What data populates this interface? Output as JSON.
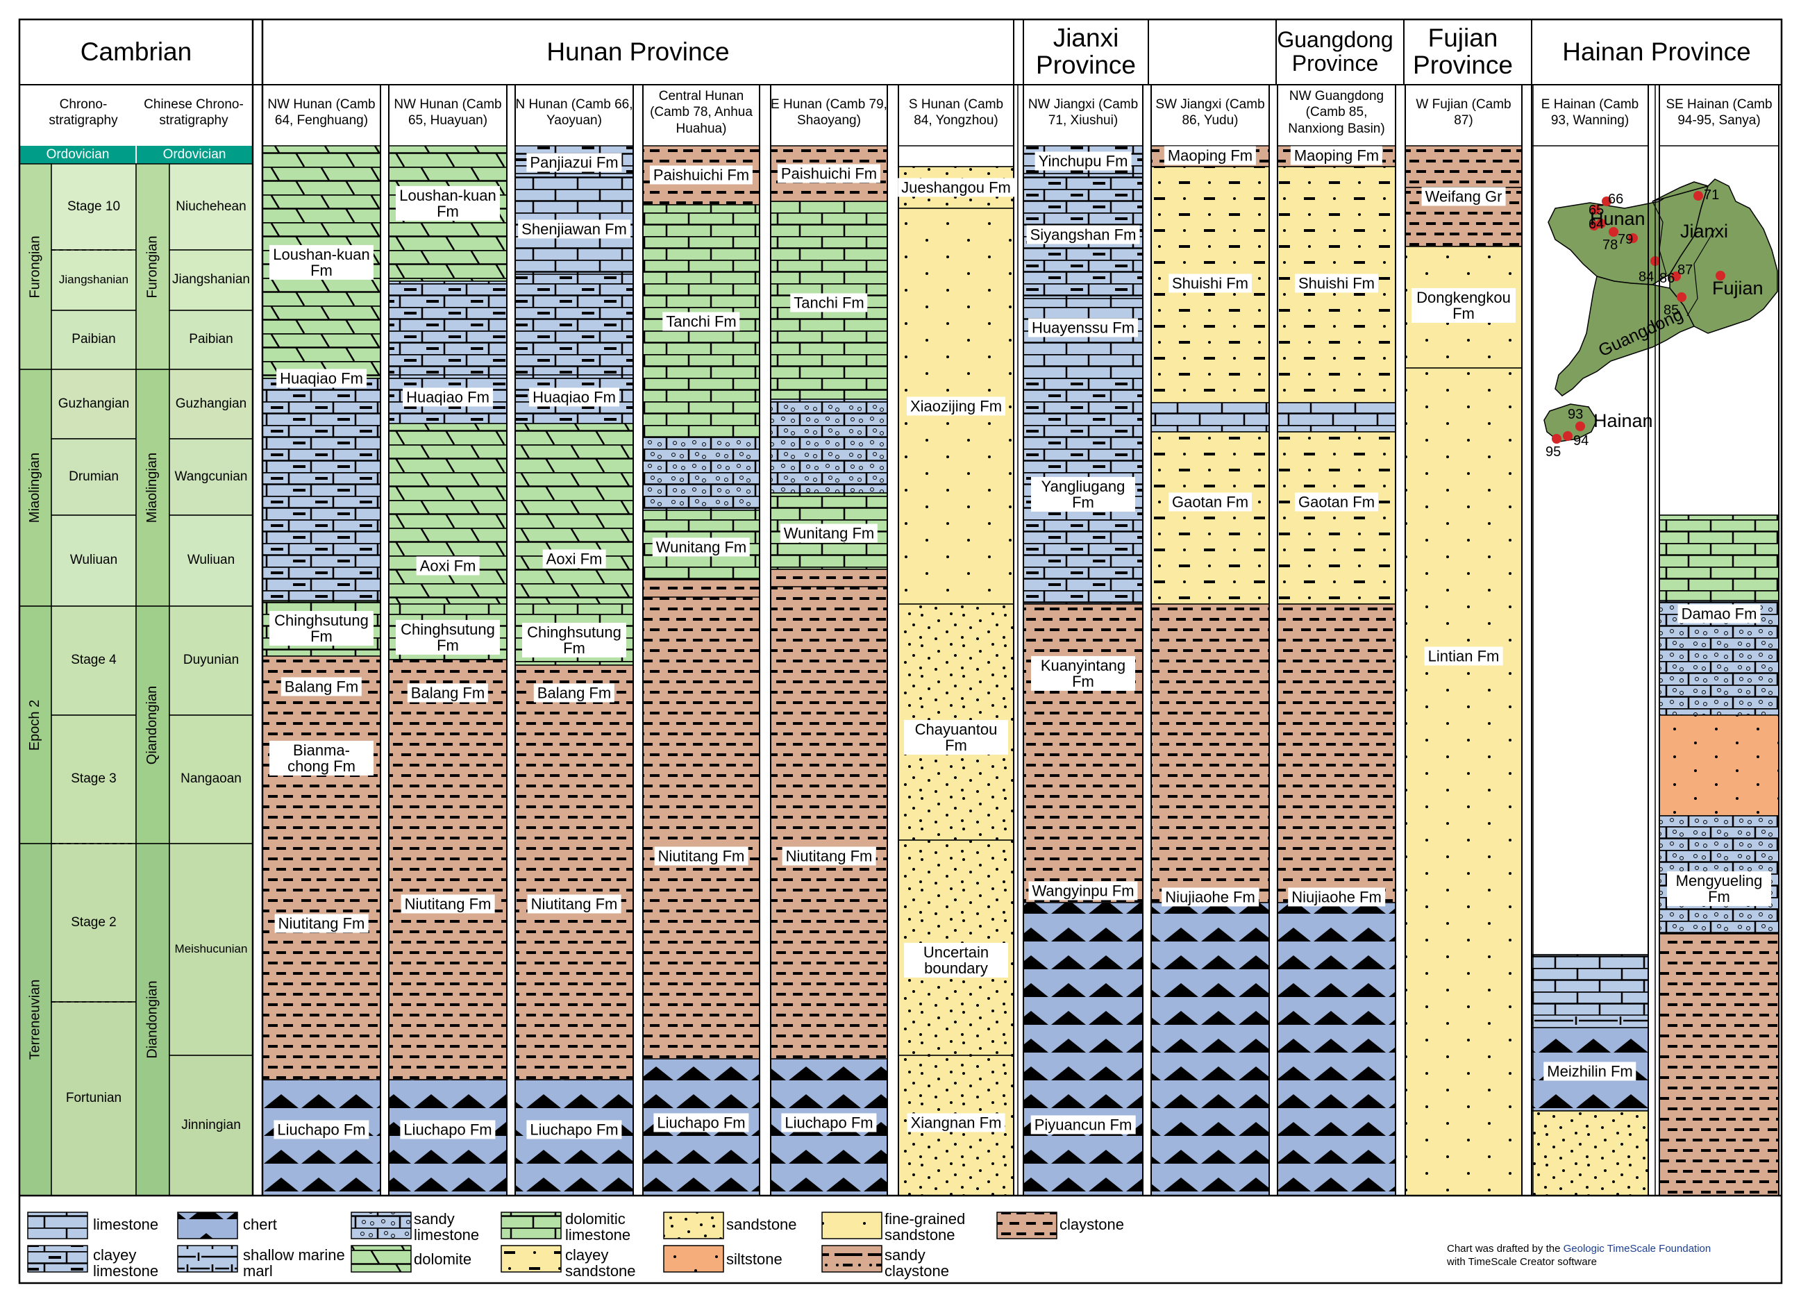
{
  "headers": {
    "cambrian": "Cambrian",
    "hunan": "Hunan Province",
    "jiangxi": "Jianxi Province",
    "guangdong": "Guangdong Province",
    "fujian": "Fujian Province",
    "hainan": "Hainan Province",
    "chrono": "Chrono-stratigraphy",
    "chinese_chrono": "Chinese Chrono-stratigraphy"
  },
  "ordovician": "Ordovician",
  "intl_series": [
    "Furongian",
    "Miaolingian",
    "Epoch 2",
    "Terreneuvian"
  ],
  "intl_stages": [
    "Stage 10",
    "Jiangshanian",
    "Paibian",
    "Guzhangian",
    "Drumian",
    "Wuliuan",
    "Stage 4",
    "Stage 3",
    "Stage 2",
    "Fortunian"
  ],
  "cn_series": [
    "Furongian",
    "Miaolingian",
    "Qiandongian",
    "Diandongian"
  ],
  "cn_stages": [
    "Niuchehean",
    "Jiangshanian",
    "Paibian",
    "Guzhangian",
    "Wangcunian",
    "Wuliuan",
    "Duyunian",
    "Nangaoan",
    "Meishucunian",
    "Jinningian"
  ],
  "columns": [
    {
      "title": "NW Hunan (Camb 64, Fenghuang)"
    },
    {
      "title": "NW Hunan (Camb 65, Huayuan)"
    },
    {
      "title": "N Hunan (Camb 66, Yaoyuan)"
    },
    {
      "title": "Central Hunan (Camb 78, Anhua Huahua)"
    },
    {
      "title": "E Hunan (Camb 79, Shaoyang)"
    },
    {
      "title": "S Hunan (Camb 84, Yongzhou)"
    },
    {
      "title": "NW Jiangxi (Camb 71, Xiushui)"
    },
    {
      "title": "SW Jiangxi (Camb 86, Yudu)"
    },
    {
      "title": "NW Guangdong (Camb 85, Nanxiong Basin)"
    },
    {
      "title": "W Fujian (Camb 87)"
    },
    {
      "title": "E Hainan (Camb 93, Wanning)"
    },
    {
      "title": "SE Hainan (Camb 94-95, Sanya)"
    }
  ],
  "formations": [
    [
      "Loushan-kuan Fm",
      "Huaqiao Fm",
      "Chinghsutung Fm",
      "Balang Fm",
      "Bianma-chong Fm",
      "Niutitang Fm",
      "Liuchapo Fm"
    ],
    [
      "Loushan-kuan Fm",
      "Huaqiao Fm",
      "Aoxi Fm",
      "Chinghsutung Fm",
      "Balang Fm",
      "Niutitang Fm",
      "Liuchapo Fm"
    ],
    [
      "Panjiazui Fm",
      "Shenjiawan Fm",
      "Huaqiao Fm",
      "Aoxi Fm",
      "Chinghsutung Fm",
      "Balang Fm",
      "Niutitang Fm",
      "Liuchapo Fm"
    ],
    [
      "Paishuichi Fm",
      "Tanchi Fm",
      "Wunitang Fm",
      "Niutitang Fm",
      "Liuchapo Fm"
    ],
    [
      "Paishuichi Fm",
      "Tanchi Fm",
      "Wunitang Fm",
      "Niutitang Fm",
      "Liuchapo Fm"
    ],
    [
      "Jueshangou Fm",
      "Xiaozijing Fm",
      "Chayuantou Fm",
      "Uncertain boundary",
      "Xiangnan Fm"
    ],
    [
      "Yinchupu Fm",
      "Siyangshan Fm",
      "Huayenssu Fm",
      "Yangliugang Fm",
      "Kuanyintang Fm",
      "Wangyinpu Fm",
      "Piyuancun Fm"
    ],
    [
      "Maoping Fm",
      "Shuishi Fm",
      "Gaotan Fm",
      "Niujiaohe Fm"
    ],
    [
      "Maoping Fm",
      "Shuishi Fm",
      "Gaotan Fm",
      "Niujiaohe Fm"
    ],
    [
      "Weifang Gr",
      "Dongkengkou Fm",
      "Lintian Fm"
    ],
    [
      "Meizhilin Fm"
    ],
    [
      "Damao Fm",
      "Mengyueling Fm"
    ]
  ],
  "map": {
    "provinces": [
      "Hunan",
      "Jianxi",
      "Fujian",
      "Guangdong",
      "Hainan"
    ],
    "sites": [
      "71",
      "66",
      "65",
      "64",
      "78",
      "79",
      "84",
      "86",
      "87",
      "85",
      "93",
      "94",
      "95"
    ],
    "fill": "#7f9f5e",
    "dot": "#d42828"
  },
  "legend": {
    "limestone": "limestone",
    "clayey_limestone": "clayey limestone",
    "chert": "chert",
    "shallow_marine_marl": "shallow marine marl",
    "sandy_limestone": "sandy limestone",
    "dolomite": "dolomite",
    "dolomitic_limestone": "dolomitic limestone",
    "clayey_sandstone": "clayey sandstone",
    "sandstone": "sandstone",
    "siltstone": "siltstone",
    "fine_grained_sandstone": "fine-grained sandstone",
    "sandy_claystone": "sandy claystone",
    "claystone": "claystone"
  },
  "credit": {
    "line1_prefix": "Chart was drafted by the",
    "foundation": "Geologic TimeScale Foundation",
    "line2": "with TimeScale Creator software"
  },
  "colors": {
    "claystone": "#d8ab90",
    "limestone": "#b7cbe6",
    "dolomite": "#b5e0a6",
    "sandstone": "#fbeaa2",
    "chert": "#9fb5dc",
    "siltstone": "#f6ad7c",
    "ordovician": "#009e89",
    "series": "#a6d08f",
    "stage": "#d4ebc6"
  }
}
